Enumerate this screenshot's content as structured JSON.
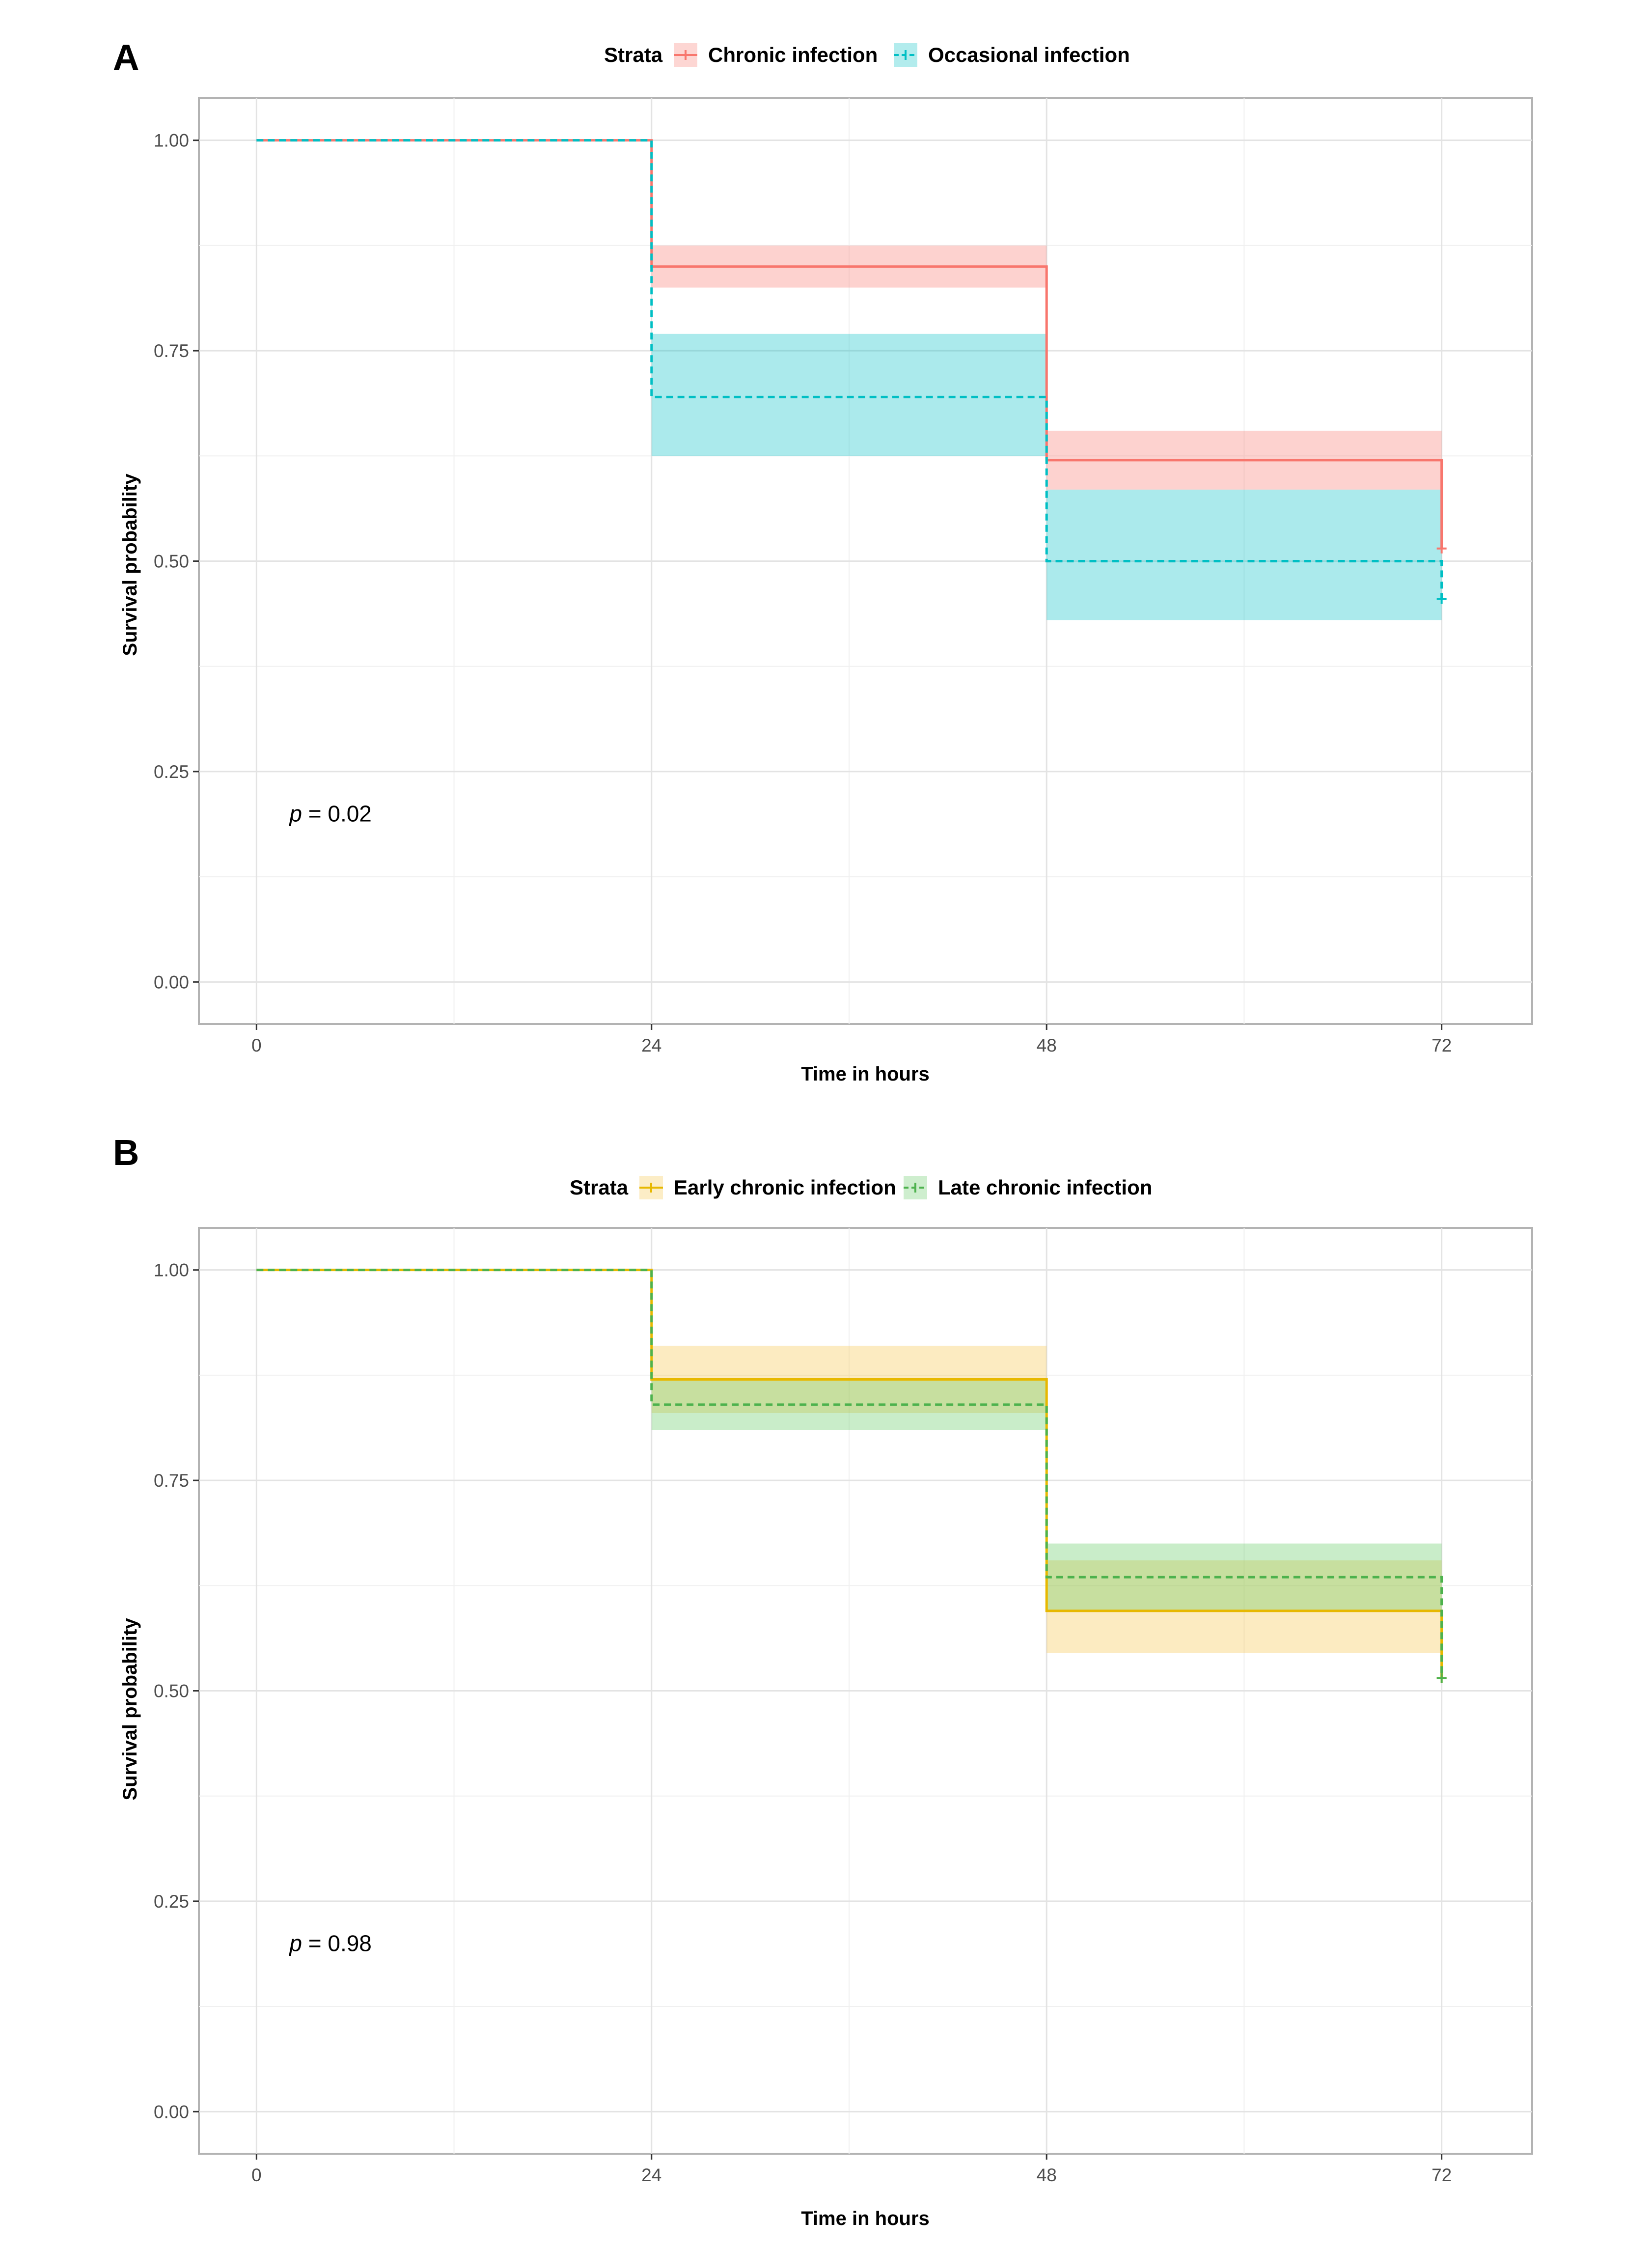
{
  "chart_data": [
    {
      "panel": "A",
      "type": "line",
      "subtype": "kaplan-meier step",
      "legend_title": "Strata",
      "xlabel": "Time in hours",
      "ylabel": "Survival probability",
      "xlim": [
        -3.5,
        77.5
      ],
      "ylim": [
        -0.05,
        1.05
      ],
      "xticks": [
        0,
        24,
        48,
        72
      ],
      "yticks": [
        0.0,
        0.25,
        0.5,
        0.75,
        1.0
      ],
      "xtick_labels": [
        "0",
        "24",
        "48",
        "72"
      ],
      "ytick_labels": [
        "0.00",
        "0.25",
        "0.50",
        "0.75",
        "1.00"
      ],
      "x_minor_grid": [
        12,
        36,
        60
      ],
      "y_minor_grid": [
        0.125,
        0.375,
        0.625,
        0.875
      ],
      "p_value_prefix": "p",
      "p_value_text": " = 0.02",
      "p_value_pos": {
        "x": 2,
        "y": 0.2
      },
      "series": [
        {
          "name": "Chronic infection",
          "color": "#F8766D",
          "fill": "#F8766D",
          "dash": "solid",
          "time": [
            0,
            24,
            48,
            72
          ],
          "survival": [
            1.0,
            0.85,
            0.62,
            0.515
          ],
          "lower": [
            1.0,
            0.825,
            0.585,
            0.515
          ],
          "upper": [
            1.0,
            0.875,
            0.655,
            0.515
          ],
          "censor": [
            {
              "time": 72,
              "survival": 0.515
            }
          ]
        },
        {
          "name": "Occasional infection",
          "color": "#00BFC4",
          "fill": "#00BFC4",
          "dash": "dashed",
          "time": [
            0,
            24,
            48,
            72
          ],
          "survival": [
            1.0,
            0.695,
            0.5,
            0.455
          ],
          "lower": [
            1.0,
            0.625,
            0.43,
            0.455
          ],
          "upper": [
            1.0,
            0.77,
            0.585,
            0.455
          ],
          "censor": [
            {
              "time": 72,
              "survival": 0.455
            }
          ]
        }
      ]
    },
    {
      "panel": "B",
      "type": "line",
      "subtype": "kaplan-meier step",
      "legend_title": "Strata",
      "xlabel": "Time in hours",
      "ylabel": "Survival probability",
      "xlim": [
        -3.5,
        77.5
      ],
      "ylim": [
        -0.05,
        1.05
      ],
      "xticks": [
        0,
        24,
        48,
        72
      ],
      "yticks": [
        0.0,
        0.25,
        0.5,
        0.75,
        1.0
      ],
      "xtick_labels": [
        "0",
        "24",
        "48",
        "72"
      ],
      "ytick_labels": [
        "0.00",
        "0.25",
        "0.50",
        "0.75",
        "1.00"
      ],
      "x_minor_grid": [
        12,
        36,
        60
      ],
      "y_minor_grid": [
        0.125,
        0.375,
        0.625,
        0.875
      ],
      "p_value_prefix": "p",
      "p_value_text": " = 0.98",
      "p_value_pos": {
        "x": 2,
        "y": 0.2
      },
      "series": [
        {
          "name": "Early chronic infection",
          "color": "#E7B800",
          "fill": "#F5C242",
          "dash": "solid",
          "time": [
            0,
            24,
            48,
            72
          ],
          "survival": [
            1.0,
            0.87,
            0.595,
            0.515
          ],
          "lower": [
            1.0,
            0.83,
            0.545,
            0.515
          ],
          "upper": [
            1.0,
            0.91,
            0.655,
            0.515
          ],
          "censor": [
            {
              "time": 72,
              "survival": 0.515
            }
          ]
        },
        {
          "name": "Late chronic infection",
          "color": "#4DB24D",
          "fill": "#5CC85C",
          "dash": "dashed",
          "time": [
            0,
            24,
            48,
            72
          ],
          "survival": [
            1.0,
            0.84,
            0.635,
            0.515
          ],
          "lower": [
            1.0,
            0.81,
            0.595,
            0.515
          ],
          "upper": [
            1.0,
            0.87,
            0.675,
            0.515
          ],
          "censor": [
            {
              "time": 72,
              "survival": 0.515
            }
          ]
        }
      ]
    }
  ]
}
